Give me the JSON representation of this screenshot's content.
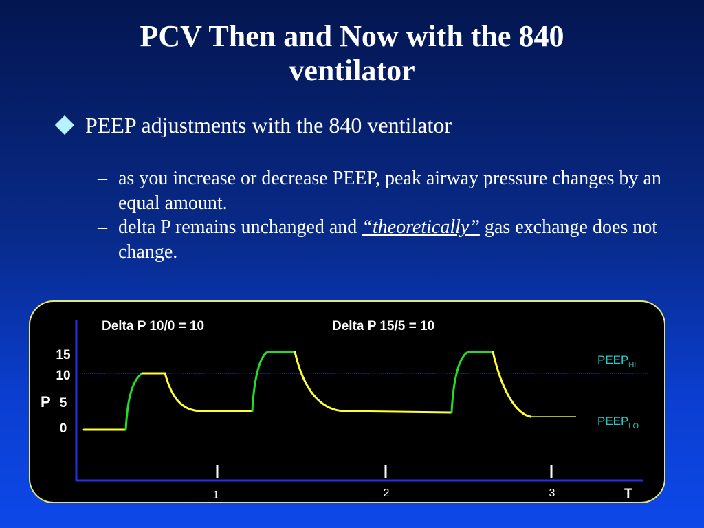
{
  "slide": {
    "title_line1": "PCV Then and Now with the 840",
    "title_line2": "ventilator",
    "bullet": "PEEP adjustments with the 840 ventilator",
    "sub1_dash": "–",
    "sub1_text": "as you increase or decrease PEEP, peak airway pressure changes by an equal amount.",
    "sub2_dash": "–",
    "sub2_before": "delta P remains unchanged and ",
    "sub2_emph": "“theoretically”",
    "sub2_after": " gas exchange does not change."
  },
  "colors": {
    "background_top": "#041650",
    "background_bottom": "#0d48e8",
    "inspiration": "#22dd22",
    "expiration": "#ffff33",
    "peep_label": "#22cccc",
    "axis": "#2233dd",
    "panel_border": "#e8e86a"
  },
  "chart_data": {
    "type": "line",
    "annotations": [
      "Delta P 10/0 = 10",
      "Delta P 15/5 = 10"
    ],
    "ylabel": "P",
    "xlabel": "T",
    "y_ticks": [
      "15",
      "10",
      "5",
      "0"
    ],
    "x_ticks": [
      "1",
      "2",
      "3"
    ],
    "peep_hi": {
      "base": "PEEP",
      "sub": "HI"
    },
    "peep_lo": {
      "base": "PEEP",
      "sub": "LO"
    },
    "reference_line_y": 10,
    "breaths": [
      {
        "peep": 0,
        "peak": 10,
        "delta_p": 10
      },
      {
        "peep": 5,
        "peak": 15,
        "delta_p": 10
      },
      {
        "peep": 5,
        "peak": 15,
        "delta_p": 10
      }
    ]
  }
}
